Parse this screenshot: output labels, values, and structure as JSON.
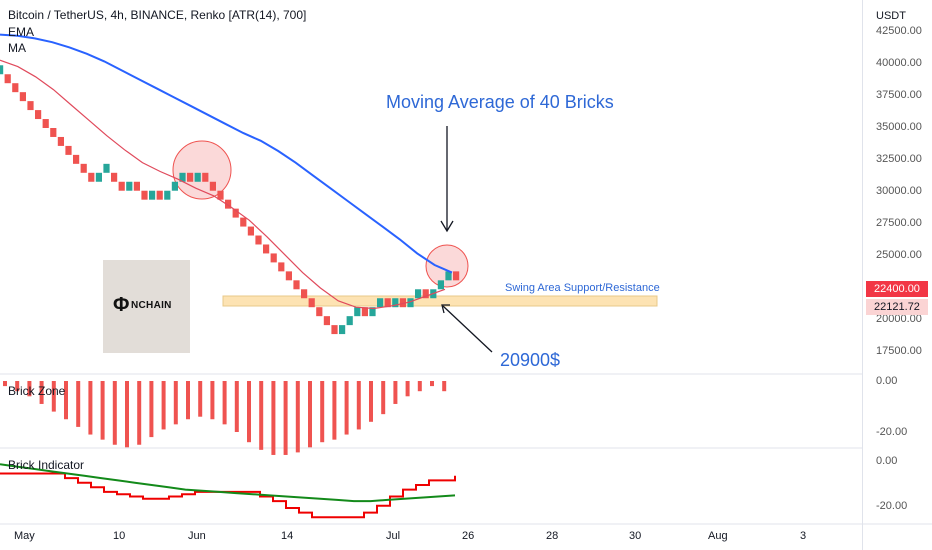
{
  "header": {
    "title": "Bitcoin / TetherUS, 4h, BINANCE, Renko [ATR(14), 700]",
    "ema_label": "EMA",
    "ma_label": "MA"
  },
  "price_axis": {
    "currency": "USDT",
    "ticks": [
      "42500.00",
      "40000.00",
      "37500.00",
      "35000.00",
      "32500.00",
      "30000.00",
      "27500.00",
      "25000.00",
      "20000.00",
      "17500.00"
    ],
    "last_price": "22400.00",
    "level_price": "22121.72"
  },
  "panels": {
    "brick_zone": {
      "label": "Brick Zone",
      "ticks": [
        "0.00",
        "-20.00"
      ]
    },
    "brick_indicator": {
      "label": "Brick Indicator",
      "ticks": [
        "0.00",
        "-20.00"
      ]
    }
  },
  "time_axis": {
    "labels": [
      "May",
      "10",
      "Jun",
      "14",
      "Jul",
      "26",
      "28",
      "30",
      "Aug",
      "3"
    ]
  },
  "annotations": {
    "ma_note": "Moving Average of 40 Bricks",
    "swing_area": "Swing Area Support/Resistance",
    "level_note": "20900$"
  },
  "logo": {
    "brand": "NCHAIN"
  },
  "colors": {
    "up": "#26a69a",
    "down": "#ef5350",
    "ema": "#2962ff",
    "ma": "#e04a5c",
    "zone": "#fde3b3",
    "ind_red": "#ef0000",
    "ind_green": "#138a1a"
  },
  "chart_data": {
    "type": "renko",
    "brick_size": 700,
    "ylim": [
      16500,
      43500
    ],
    "bricks": [
      {
        "d": "up",
        "o": 39200
      },
      {
        "d": "down",
        "o": 39200
      },
      {
        "d": "down",
        "o": 38500
      },
      {
        "d": "down",
        "o": 37800
      },
      {
        "d": "down",
        "o": 37100
      },
      {
        "d": "down",
        "o": 36400
      },
      {
        "d": "down",
        "o": 35700
      },
      {
        "d": "down",
        "o": 35000
      },
      {
        "d": "down",
        "o": 34300
      },
      {
        "d": "down",
        "o": 33600
      },
      {
        "d": "down",
        "o": 32900
      },
      {
        "d": "down",
        "o": 32200
      },
      {
        "d": "down",
        "o": 31500
      },
      {
        "d": "up",
        "o": 30800
      },
      {
        "d": "up",
        "o": 31500
      },
      {
        "d": "down",
        "o": 31500
      },
      {
        "d": "down",
        "o": 30800
      },
      {
        "d": "up",
        "o": 30100
      },
      {
        "d": "down",
        "o": 30800
      },
      {
        "d": "down",
        "o": 30100
      },
      {
        "d": "up",
        "o": 29400
      },
      {
        "d": "down",
        "o": 30100
      },
      {
        "d": "up",
        "o": 29400
      },
      {
        "d": "up",
        "o": 30100
      },
      {
        "d": "up",
        "o": 30800
      },
      {
        "d": "down",
        "o": 31500
      },
      {
        "d": "up",
        "o": 30800
      },
      {
        "d": "down",
        "o": 31500
      },
      {
        "d": "down",
        "o": 30800
      },
      {
        "d": "down",
        "o": 30100
      },
      {
        "d": "down",
        "o": 29400
      },
      {
        "d": "down",
        "o": 28700
      },
      {
        "d": "down",
        "o": 28000
      },
      {
        "d": "down",
        "o": 27300
      },
      {
        "d": "down",
        "o": 26600
      },
      {
        "d": "down",
        "o": 25900
      },
      {
        "d": "down",
        "o": 25200
      },
      {
        "d": "down",
        "o": 24500
      },
      {
        "d": "down",
        "o": 23800
      },
      {
        "d": "down",
        "o": 23100
      },
      {
        "d": "down",
        "o": 22400
      },
      {
        "d": "down",
        "o": 21700
      },
      {
        "d": "down",
        "o": 21000
      },
      {
        "d": "down",
        "o": 20300
      },
      {
        "d": "down",
        "o": 19600
      },
      {
        "d": "up",
        "o": 18900
      },
      {
        "d": "up",
        "o": 19600
      },
      {
        "d": "up",
        "o": 20300
      },
      {
        "d": "down",
        "o": 21000
      },
      {
        "d": "up",
        "o": 20300
      },
      {
        "d": "up",
        "o": 21000
      },
      {
        "d": "down",
        "o": 21700
      },
      {
        "d": "up",
        "o": 21000
      },
      {
        "d": "down",
        "o": 21700
      },
      {
        "d": "up",
        "o": 21000
      },
      {
        "d": "up",
        "o": 21700
      },
      {
        "d": "down",
        "o": 22400
      },
      {
        "d": "up",
        "o": 21700
      },
      {
        "d": "up",
        "o": 22400
      },
      {
        "d": "up",
        "o": 23100
      },
      {
        "d": "down",
        "o": 23800
      }
    ],
    "ema": [
      42300,
      42200,
      42000,
      41700,
      41300,
      40800,
      40200,
      39500,
      38800,
      38100,
      37400,
      36700,
      36000,
      35300,
      34600,
      34000,
      33200,
      32300,
      31300,
      30300,
      29300,
      28300,
      27300,
      26300,
      25200,
      24300,
      23700
    ],
    "ma": [
      40300,
      39800,
      39000,
      38000,
      36800,
      35600,
      34400,
      33300,
      32300,
      31600,
      31000,
      30300,
      29700,
      28800,
      27800,
      26500,
      25100,
      23700,
      22500,
      21500,
      21000,
      20900,
      21100,
      21400,
      21900,
      22400
    ],
    "brick_zone": [
      -2,
      -4,
      -6,
      -9,
      -12,
      -15,
      -18,
      -21,
      -23,
      -25,
      -26,
      -25,
      -22,
      -19,
      -17,
      -15,
      -14,
      -15,
      -17,
      -20,
      -24,
      -27,
      -29,
      -29,
      -28,
      -26,
      -24,
      -23,
      -21,
      -19,
      -16,
      -13,
      -9,
      -6,
      -4,
      -2,
      -4
    ],
    "brick_indicator_red": [
      -5,
      -5,
      -5,
      -5,
      -5,
      -7,
      -9,
      -11,
      -13,
      -14,
      -15,
      -16,
      -16,
      -15,
      -14,
      -13,
      -13,
      -13,
      -13,
      -13,
      -15,
      -17,
      -20,
      -22,
      -24,
      -24,
      -24,
      -24,
      -22,
      -19,
      -15,
      -12,
      -10,
      -8,
      -8,
      -6
    ],
    "brick_indicator_green": [
      -1,
      -2,
      -3,
      -4,
      -5,
      -6,
      -7,
      -8,
      -9,
      -10,
      -11,
      -12,
      -12.5,
      -13,
      -13.5,
      -14,
      -14.5,
      -15,
      -15.5,
      -16,
      -16.5,
      -17,
      -17,
      -16.5,
      -16,
      -15.5,
      -15,
      -14.5
    ]
  }
}
